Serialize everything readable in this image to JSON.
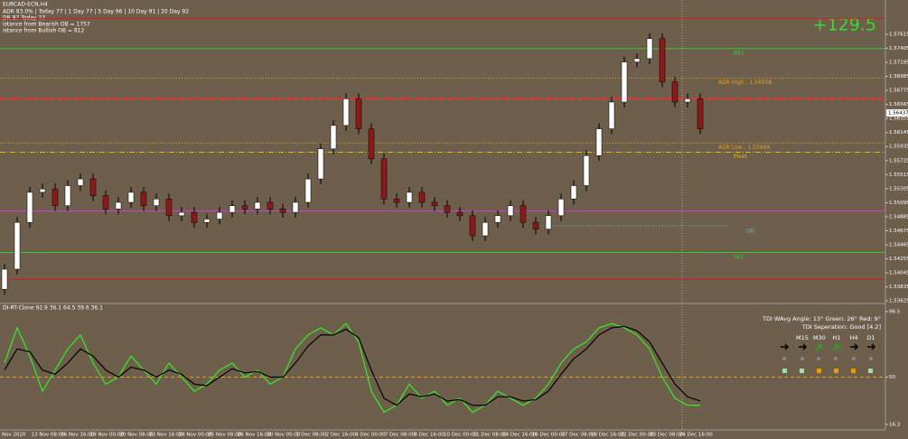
{
  "header": {
    "symbol": "EURCAD-ECN,H4",
    "adr": "ADR 83.0% | Today 77 | 1 Day 77 | 5 Day 96 | 10 Day 91 | 20 Day 92",
    "dr": "DR 87  Today 77",
    "bearish": "istance from Bearish OB = 1757",
    "bullish": "istance from Bullish OB = 812"
  },
  "profit_label": "+129.5",
  "current_price": 1.56437,
  "time_axis": [
    "Nov 2020",
    "13 Nov 08:00",
    "16 Nov 16:00",
    "19 Nov 00:00",
    "20 Nov 08:00",
    "23 Nov 16:00",
    "24 Nov 00:00",
    "25 Nov 08:00",
    "26 Nov 16:00",
    "30 Nov 00:00",
    "1 Dec 08:00",
    "2 Dec 16:00",
    "4 Dec 00:00",
    "7 Dec 08:00",
    "8 Dec 16:00",
    "10 Dec 00:00",
    "11 Dec 08:00",
    "14 Dec 16:00",
    "16 Dec 00:00",
    "17 Dec 08:00",
    "18 Dec 16:00",
    "22 Dec 00:00",
    "23 Dec 08:00",
    "24 Dec 16:00"
  ],
  "tdi_panel": {
    "angle": "TDI WAvg Angle: 13°  Green: 26°  Red: 9°",
    "separation": "TDI Seperation: Good [4.2]",
    "timeframes": [
      "M15",
      "M30",
      "H1",
      "H4",
      "D1"
    ]
  },
  "chart_data": [
    {
      "type": "candlestick",
      "ylim": [
        1.536,
        1.581
      ],
      "yticks": [
        1.53625,
        1.53835,
        1.54045,
        1.54255,
        1.54465,
        1.54675,
        1.54885,
        1.55095,
        1.55305,
        1.55515,
        1.55725,
        1.55935,
        1.56145,
        1.56355,
        1.56565,
        1.56775,
        1.56985,
        1.57195,
        1.57405,
        1.57615
      ],
      "up_color": "#ffffff",
      "down_color": "#8b1a1a",
      "open": [
        1.538,
        1.541,
        1.548,
        1.5525,
        1.553,
        1.5505,
        1.5535,
        1.5545,
        1.552,
        1.55,
        1.551,
        1.5525,
        1.5505,
        1.5515,
        1.549,
        1.5495,
        1.548,
        1.5485,
        1.5495,
        1.5505,
        1.55,
        1.551,
        1.55,
        1.5495,
        1.551,
        1.5545,
        1.559,
        1.5625,
        1.5665,
        1.562,
        1.5575,
        1.5515,
        1.551,
        1.5525,
        1.551,
        1.5505,
        1.5495,
        1.549,
        1.546,
        1.548,
        1.549,
        1.5505,
        1.548,
        1.547,
        1.549,
        1.5515,
        1.5535,
        1.558,
        1.562,
        1.566,
        1.572,
        1.5725,
        1.5755,
        1.569,
        1.566,
        1.5665
      ],
      "high": [
        1.5418,
        1.5488,
        1.5533,
        1.5538,
        1.5538,
        1.5543,
        1.5553,
        1.5553,
        1.5528,
        1.5518,
        1.5533,
        1.5533,
        1.5523,
        1.5523,
        1.5503,
        1.5503,
        1.5493,
        1.5503,
        1.5513,
        1.5513,
        1.5518,
        1.5518,
        1.5508,
        1.5518,
        1.5553,
        1.5598,
        1.5633,
        1.5673,
        1.5673,
        1.5628,
        1.5583,
        1.5523,
        1.5533,
        1.5533,
        1.5518,
        1.5513,
        1.5503,
        1.5498,
        1.5488,
        1.5498,
        1.5513,
        1.5513,
        1.5488,
        1.5498,
        1.5523,
        1.5543,
        1.5588,
        1.5628,
        1.5668,
        1.5728,
        1.5733,
        1.5763,
        1.5763,
        1.5698,
        1.5673,
        1.5673
      ],
      "low": [
        1.5372,
        1.5402,
        1.5472,
        1.5517,
        1.5497,
        1.5497,
        1.5527,
        1.5512,
        1.5492,
        1.5492,
        1.5502,
        1.5497,
        1.5497,
        1.5482,
        1.5482,
        1.5472,
        1.5472,
        1.5477,
        1.5487,
        1.5492,
        1.5492,
        1.5492,
        1.5487,
        1.5487,
        1.5502,
        1.5537,
        1.5582,
        1.5617,
        1.5612,
        1.5567,
        1.5507,
        1.5502,
        1.5502,
        1.5502,
        1.5497,
        1.5487,
        1.5482,
        1.5452,
        1.5452,
        1.5472,
        1.5482,
        1.5472,
        1.5462,
        1.5462,
        1.5482,
        1.5507,
        1.5527,
        1.5572,
        1.5612,
        1.5652,
        1.5712,
        1.5717,
        1.5682,
        1.5652,
        1.5652,
        1.5612
      ],
      "close": [
        1.541,
        1.548,
        1.5525,
        1.553,
        1.5505,
        1.5535,
        1.5545,
        1.552,
        1.55,
        1.551,
        1.5525,
        1.5505,
        1.5515,
        1.549,
        1.5495,
        1.548,
        1.5485,
        1.5495,
        1.5505,
        1.55,
        1.551,
        1.55,
        1.5495,
        1.551,
        1.5545,
        1.559,
        1.5625,
        1.5665,
        1.562,
        1.5575,
        1.5515,
        1.551,
        1.5525,
        1.551,
        1.5505,
        1.5495,
        1.549,
        1.546,
        1.548,
        1.549,
        1.5505,
        1.548,
        1.547,
        1.549,
        1.5515,
        1.5535,
        1.558,
        1.562,
        1.566,
        1.572,
        1.5725,
        1.5755,
        1.569,
        1.566,
        1.5665,
        1.562
      ],
      "levels": [
        {
          "value": 1.5785,
          "color": "#d02020",
          "style": "solid"
        },
        {
          "name": "R61",
          "value": 1.574,
          "color": "#33cc33",
          "style": "solid"
        },
        {
          "name": "ADR High : 1.56958",
          "value": 1.56958,
          "color": "#e0a020",
          "style": "dotted"
        },
        {
          "value": 1.5665,
          "color": "#ff2a2a",
          "style": "dashed"
        },
        {
          "name": "ADR Low : 1.55986",
          "value": 1.55986,
          "color": "#e0a020",
          "style": "dotted"
        },
        {
          "name": "Pivot",
          "value": 1.5585,
          "color": "#d4c000",
          "style": "dashdot"
        },
        {
          "value": 1.5497,
          "color": "#d040d0",
          "style": "solid"
        },
        {
          "name": "OB",
          "value": 1.5475,
          "color": "#40c0d0",
          "style": "dotted"
        },
        {
          "name": "S61",
          "value": 1.5435,
          "color": "#33cc33",
          "style": "solid"
        },
        {
          "value": 1.5395,
          "color": "#d02020",
          "style": "solid"
        }
      ]
    },
    {
      "type": "line",
      "title": "DI-RT-Clone 92.9 36.1 64.5 39.6 36.1",
      "ylim": [
        16.3,
        96.5
      ],
      "yticks": [
        16.3,
        50,
        96.5
      ],
      "midline": 50,
      "series": [
        {
          "color": "#33ee22",
          "values": [
            60,
            85,
            65,
            40,
            55,
            70,
            80,
            60,
            45,
            50,
            65,
            55,
            45,
            60,
            50,
            40,
            45,
            55,
            60,
            50,
            55,
            45,
            50,
            70,
            80,
            85,
            80,
            88,
            75,
            40,
            25,
            30,
            45,
            35,
            40,
            30,
            35,
            25,
            30,
            40,
            35,
            30,
            35,
            45,
            60,
            70,
            75,
            85,
            88,
            85,
            80,
            70,
            50,
            35,
            30,
            30
          ]
        },
        {
          "color": "#000000",
          "values": [
            55,
            70,
            68,
            55,
            52,
            60,
            70,
            65,
            55,
            50,
            57,
            55,
            50,
            55,
            52,
            45,
            44,
            50,
            56,
            53,
            54,
            50,
            50,
            60,
            72,
            80,
            80,
            84,
            78,
            55,
            35,
            30,
            38,
            36,
            38,
            33,
            34,
            30,
            30,
            36,
            36,
            33,
            34,
            40,
            52,
            63,
            70,
            80,
            85,
            86,
            83,
            75,
            60,
            45,
            36,
            33
          ]
        }
      ]
    }
  ]
}
